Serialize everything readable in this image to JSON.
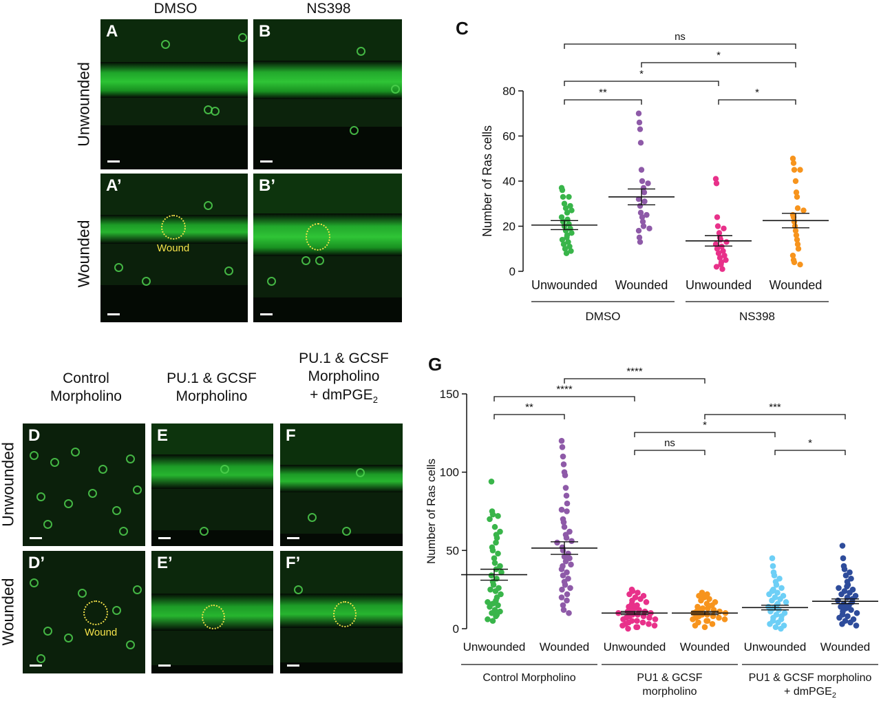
{
  "panel_a_b": {
    "col_labels": [
      "DMSO",
      "NS398"
    ],
    "row_labels": [
      "Unwounded",
      "Wounded"
    ],
    "images": [
      {
        "letter": "A",
        "wound": false
      },
      {
        "letter": "B",
        "wound": false
      },
      {
        "letter": "A’",
        "wound": true,
        "wound_label": "Wound"
      },
      {
        "letter": "B’",
        "wound": true,
        "wound_label": ""
      }
    ]
  },
  "panel_d_f": {
    "col_labels": [
      "Control\nMorpholino",
      "PU.1 & GCSF\nMorpholino",
      "PU.1 & GCSF\nMorpholino\n+ dmPGE2"
    ],
    "row_labels": [
      "Unwounded",
      "Wounded"
    ],
    "images": [
      {
        "letter": "D",
        "wound": false
      },
      {
        "letter": "E",
        "wound": false
      },
      {
        "letter": "F",
        "wound": false
      },
      {
        "letter": "D’",
        "wound": true,
        "wound_label": "Wound"
      },
      {
        "letter": "E’",
        "wound": true,
        "wound_label": ""
      },
      {
        "letter": "F’",
        "wound": true,
        "wound_label": ""
      }
    ]
  },
  "chart_data": [
    {
      "panel": "C",
      "type": "scatter",
      "ylabel": "Number of Ras cells",
      "ylim": [
        0,
        80
      ],
      "yticks": [
        0,
        20,
        40,
        60,
        80
      ],
      "categories": [
        "Unwounded",
        "Wounded",
        "Unwounded",
        "Wounded"
      ],
      "groups": [
        {
          "label": "DMSO",
          "categories": [
            0,
            1
          ]
        },
        {
          "label": "NS398",
          "categories": [
            2,
            3
          ]
        }
      ],
      "series": [
        {
          "color": "#39b54a",
          "mean": 20.5,
          "sem": 2.0,
          "values": [
            37,
            36,
            33,
            33,
            30,
            29,
            28,
            27,
            26,
            24,
            23,
            22,
            21,
            20,
            19,
            18,
            17,
            16,
            15,
            14,
            13,
            12,
            11,
            10,
            9,
            8
          ]
        },
        {
          "color": "#8e5aa8",
          "mean": 33,
          "sem": 3.5,
          "values": [
            70,
            66,
            63,
            57,
            45,
            40,
            39,
            37,
            35,
            32,
            31,
            29,
            26,
            25,
            24,
            22,
            20,
            19,
            18,
            15,
            13
          ]
        },
        {
          "color": "#e8318a",
          "mean": 13.5,
          "sem": 2.3,
          "values": [
            41,
            39,
            24,
            20,
            19,
            17,
            15,
            14,
            13,
            12,
            11,
            10,
            9,
            8,
            7,
            6,
            5,
            4,
            3,
            2,
            1
          ]
        },
        {
          "color": "#f7941d",
          "mean": 22.5,
          "sem": 3.2,
          "values": [
            50,
            48,
            45,
            45,
            40,
            35,
            33,
            28,
            27,
            25,
            24,
            22,
            20,
            18,
            16,
            14,
            12,
            10,
            7,
            5,
            4,
            3
          ]
        }
      ],
      "significance": [
        {
          "from": 0,
          "to": 3,
          "label": "ns",
          "level": 4
        },
        {
          "from": 1,
          "to": 3,
          "label": "*",
          "level": 3
        },
        {
          "from": 0,
          "to": 2,
          "label": "*",
          "level": 2
        },
        {
          "from": 0,
          "to": 1,
          "label": "**",
          "level": 1
        },
        {
          "from": 2,
          "to": 3,
          "label": "*",
          "level": 1
        }
      ]
    },
    {
      "panel": "G",
      "type": "scatter",
      "ylabel": "Number of Ras cells",
      "ylim": [
        0,
        150
      ],
      "yticks": [
        0,
        50,
        100,
        150
      ],
      "categories": [
        "Unwounded",
        "Wounded",
        "Unwounded",
        "Wounded",
        "Unwounded",
        "Wounded"
      ],
      "groups": [
        {
          "label": "Control Morpholino",
          "categories": [
            0,
            1
          ]
        },
        {
          "label": "PU1 & GCSF\nmorpholino",
          "categories": [
            2,
            3
          ]
        },
        {
          "label": "PU1 & GCSF morpholino\n+ dmPGE2",
          "categories": [
            4,
            5
          ]
        }
      ],
      "series": [
        {
          "color": "#39b54a",
          "mean": 34.5,
          "sem": 3.5,
          "values": [
            94,
            75,
            73,
            72,
            70,
            65,
            62,
            60,
            58,
            55,
            52,
            50,
            48,
            45,
            42,
            40,
            38,
            36,
            34,
            32,
            30,
            28,
            26,
            25,
            24,
            22,
            20,
            18,
            17,
            16,
            15,
            14,
            12,
            11,
            10,
            9,
            8,
            6,
            5
          ]
        },
        {
          "color": "#8e5aa8",
          "mean": 51.5,
          "sem": 4.0,
          "values": [
            120,
            116,
            110,
            105,
            100,
            98,
            90,
            85,
            80,
            76,
            75,
            70,
            68,
            65,
            62,
            60,
            58,
            56,
            55,
            52,
            50,
            48,
            46,
            45,
            43,
            41,
            40,
            38,
            36,
            34,
            32,
            30,
            28,
            26,
            25,
            22,
            20,
            18,
            15,
            12,
            10
          ]
        },
        {
          "color": "#e8318a",
          "mean": 10,
          "sem": 1.0,
          "values": [
            25,
            24,
            23,
            22,
            21,
            20,
            19,
            18,
            17,
            16,
            15,
            14,
            13,
            12,
            12,
            11,
            11,
            10,
            10,
            9,
            9,
            8,
            8,
            7,
            7,
            6,
            6,
            5,
            5,
            4,
            4,
            3,
            3,
            2,
            2,
            1,
            1,
            0
          ]
        },
        {
          "color": "#f7941d",
          "mean": 10,
          "sem": 1.0,
          "values": [
            23,
            22,
            21,
            20,
            19,
            18,
            17,
            16,
            15,
            14,
            13,
            13,
            12,
            12,
            11,
            11,
            10,
            10,
            9,
            9,
            8,
            8,
            7,
            7,
            6,
            6,
            5,
            5,
            4,
            3,
            2,
            1
          ]
        },
        {
          "color": "#6dcff6",
          "mean": 13.5,
          "sem": 1.5,
          "values": [
            45,
            40,
            36,
            34,
            32,
            30,
            28,
            26,
            25,
            24,
            23,
            22,
            21,
            20,
            19,
            18,
            17,
            16,
            15,
            14,
            13,
            12,
            11,
            10,
            9,
            8,
            7,
            6,
            5,
            4,
            3,
            2,
            1,
            0
          ]
        },
        {
          "color": "#2e4c9b",
          "mean": 17.5,
          "sem": 1.5,
          "values": [
            53,
            45,
            40,
            38,
            36,
            34,
            32,
            30,
            28,
            27,
            26,
            25,
            24,
            23,
            22,
            21,
            20,
            19,
            18,
            17,
            16,
            15,
            14,
            13,
            12,
            11,
            10,
            9,
            8,
            7,
            6,
            5,
            4,
            3,
            2
          ]
        }
      ],
      "significance": [
        {
          "from": 1,
          "to": 3,
          "label": "****",
          "level": 5
        },
        {
          "from": 0,
          "to": 2,
          "label": "****",
          "level": 4
        },
        {
          "from": 0,
          "to": 1,
          "label": "**",
          "level": 3
        },
        {
          "from": 3,
          "to": 5,
          "label": "***",
          "level": 3
        },
        {
          "from": 2,
          "to": 4,
          "label": "*",
          "level": 2
        },
        {
          "from": 2,
          "to": 3,
          "label": "ns",
          "level": 1
        },
        {
          "from": 4,
          "to": 5,
          "label": "*",
          "level": 1
        }
      ]
    }
  ]
}
